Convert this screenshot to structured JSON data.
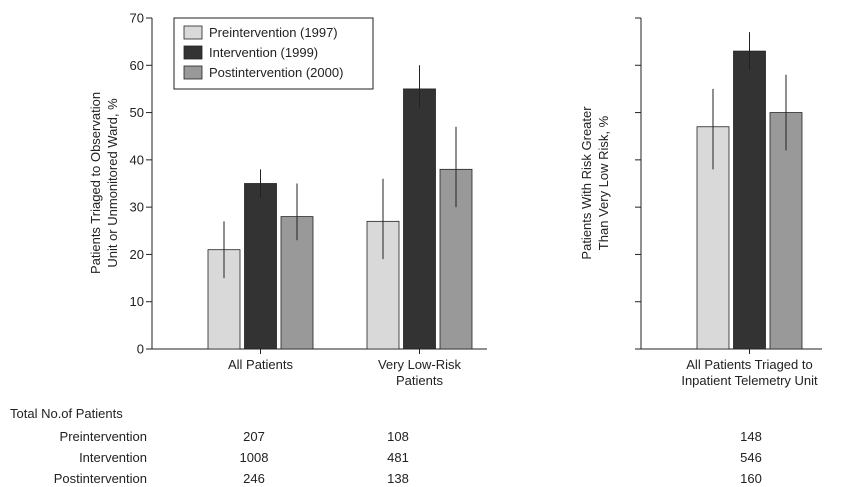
{
  "chart_data": [
    {
      "type": "bar",
      "ylabel_lines": [
        "Patients Triaged to Observation",
        "Unit or Unmonitored Ward, %"
      ],
      "ylim": [
        0,
        70
      ],
      "yticks": [
        "0",
        "10",
        "20",
        "30",
        "40",
        "50",
        "60",
        "70"
      ],
      "categories": [
        {
          "lines": [
            "All Patients"
          ]
        },
        {
          "lines": [
            "Very Low-Risk",
            "Patients"
          ]
        }
      ],
      "series": [
        {
          "name": "Preintervention (1997)",
          "color": "#d9d9d9",
          "values": [
            21,
            27
          ],
          "err_low": [
            15,
            19
          ],
          "err_high": [
            27,
            36
          ]
        },
        {
          "name": "Intervention (1999)",
          "color": "#333333",
          "values": [
            35,
            55
          ],
          "err_low": [
            32,
            51
          ],
          "err_high": [
            38,
            60
          ]
        },
        {
          "name": "Postintervention (2000)",
          "color": "#999999",
          "values": [
            28,
            38
          ],
          "err_low": [
            23,
            30
          ],
          "err_high": [
            35,
            47
          ]
        }
      ],
      "legend_position": "top-left"
    },
    {
      "type": "bar",
      "ylabel_lines": [
        "Patients With Risk Greater",
        "Than Very Low Risk, %"
      ],
      "ylim": [
        0,
        70
      ],
      "categories": [
        {
          "lines": [
            "All Patients Triaged to",
            "Inpatient Telemetry Unit"
          ]
        }
      ],
      "series": [
        {
          "name": "Preintervention (1997)",
          "color": "#d9d9d9",
          "values": [
            47
          ],
          "err_low": [
            38
          ],
          "err_high": [
            55
          ]
        },
        {
          "name": "Intervention (1999)",
          "color": "#333333",
          "values": [
            63
          ],
          "err_low": [
            59
          ],
          "err_high": [
            67
          ]
        },
        {
          "name": "Postintervention (2000)",
          "color": "#999999",
          "values": [
            50
          ],
          "err_low": [
            42
          ],
          "err_high": [
            58
          ]
        }
      ]
    }
  ],
  "patient_table": {
    "title": "Total No.of Patients",
    "rows": [
      {
        "label": "Preintervention",
        "values": [
          "207",
          "108",
          "148"
        ]
      },
      {
        "label": "Intervention",
        "values": [
          "1008",
          "481",
          "546"
        ]
      },
      {
        "label": "Postintervention",
        "values": [
          "246",
          "138",
          "160"
        ]
      }
    ]
  }
}
